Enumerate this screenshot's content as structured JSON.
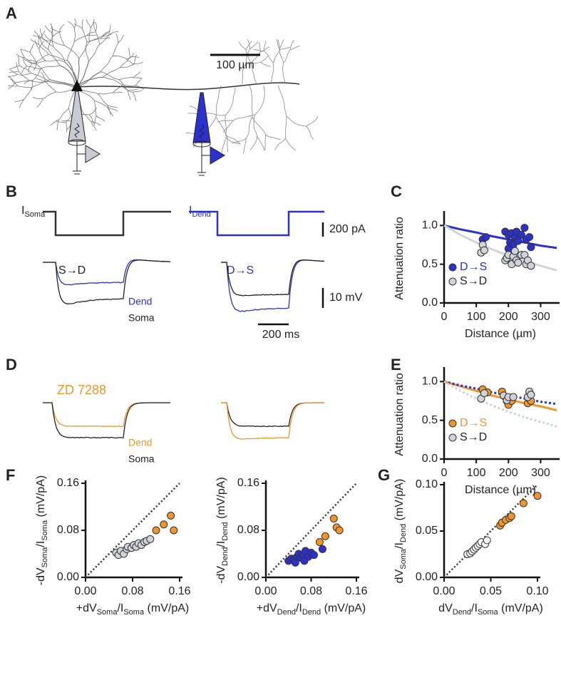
{
  "panel_labels": [
    "A",
    "B",
    "C",
    "D",
    "E",
    "F",
    "G"
  ],
  "panel_a": {
    "scale_bar": "100 µm"
  },
  "panel_b": {
    "i_soma": [
      {
        "text": "I"
      },
      {
        "sub": "Soma"
      }
    ],
    "i_dend": [
      {
        "text": "I"
      },
      {
        "sub": "Dend"
      }
    ],
    "current_scale": "200 pA",
    "left_title": "S→D",
    "right_title": "D→S",
    "dend_label": "Dend",
    "soma_label": "Soma",
    "voltage_scale": "10 mV",
    "time_scale": "200 ms"
  },
  "panel_d": {
    "drug": "ZD 7288",
    "dend_label": "Dend",
    "soma_label": "Soma"
  },
  "chart_data": [
    {
      "type": "scatter",
      "ylabel": [
        {
          "text": "Attenuation ratio"
        }
      ],
      "xlabel": [
        {
          "text": "Distance (µm)"
        }
      ],
      "xlim": [
        0,
        350
      ],
      "xticks": [
        0,
        100,
        200,
        300
      ],
      "ylim": [
        0,
        1.15
      ],
      "yticks": [
        {
          "value": 0,
          "label": "0.0"
        },
        {
          "value": 0.5,
          "label": "0.5"
        },
        {
          "value": 1,
          "label": "1.0"
        }
      ],
      "legend": "lower-left",
      "series": [
        {
          "name": "D→S",
          "color": "#2b30cf",
          "label_color": "#2b30cf",
          "x": [
            120,
            130,
            190,
            200,
            205,
            210,
            215,
            220,
            225,
            230,
            240,
            250,
            255,
            265,
            270,
            200
          ],
          "values": [
            0.82,
            0.85,
            0.92,
            0.88,
            0.78,
            0.9,
            0.75,
            0.85,
            0.92,
            0.8,
            0.88,
            0.97,
            0.82,
            0.85,
            0.72,
            0.7
          ]
        },
        {
          "name": "S→D",
          "color": "#d0d4da",
          "label_color": "#222222",
          "x": [
            115,
            120,
            125,
            190,
            195,
            200,
            210,
            215,
            225,
            230,
            240,
            250,
            255,
            260,
            270,
            220
          ],
          "values": [
            0.65,
            0.75,
            0.68,
            0.55,
            0.58,
            0.62,
            0.5,
            0.6,
            0.55,
            0.52,
            0.62,
            0.62,
            0.5,
            0.55,
            0.48,
            0.67
          ]
        }
      ],
      "fits": [
        {
          "color": "#2b30cf",
          "dashed": false,
          "x": [
            0,
            50,
            100,
            150,
            200,
            250,
            300,
            350
          ],
          "values": [
            1.0,
            0.95,
            0.91,
            0.86,
            0.82,
            0.78,
            0.74,
            0.71
          ]
        },
        {
          "color": "#cdd4db",
          "dashed": false,
          "x": [
            0,
            50,
            100,
            150,
            200,
            250,
            300,
            350
          ],
          "values": [
            1.0,
            0.88,
            0.78,
            0.69,
            0.61,
            0.54,
            0.48,
            0.42
          ]
        }
      ]
    },
    {
      "type": "scatter",
      "ylabel": [
        {
          "text": "Attenuation ratio"
        }
      ],
      "xlabel": [
        {
          "text": "Distance (µm)"
        }
      ],
      "xlim": [
        0,
        350
      ],
      "xticks": [
        0,
        100,
        200,
        300
      ],
      "ylim": [
        0,
        1.15
      ],
      "yticks": [
        {
          "value": 0,
          "label": "0.0"
        },
        {
          "value": 0.5,
          "label": "0.5"
        },
        {
          "value": 1,
          "label": "1.0"
        }
      ],
      "legend": "lower-left",
      "series": [
        {
          "name": "D→S",
          "color": "#f0952a",
          "label_color": "#f0952a",
          "x": [
            120,
            135,
            180,
            190,
            195,
            200,
            210,
            260,
            265,
            270
          ],
          "values": [
            0.9,
            0.86,
            0.87,
            0.8,
            0.75,
            0.7,
            0.75,
            0.72,
            0.78,
            0.75
          ]
        },
        {
          "name": "S→D",
          "color": "#d0d4da",
          "label_color": "#222222",
          "x": [
            115,
            125,
            185,
            195,
            200,
            215,
            260,
            265,
            270
          ],
          "values": [
            0.78,
            0.85,
            0.82,
            0.76,
            0.8,
            0.8,
            0.8,
            0.87,
            0.83
          ]
        }
      ],
      "fits": [
        {
          "color": "#f0952a",
          "dashed": false,
          "x": [
            0,
            50,
            100,
            150,
            200,
            250,
            300,
            350
          ],
          "values": [
            1.0,
            0.94,
            0.88,
            0.82,
            0.77,
            0.72,
            0.68,
            0.63
          ]
        },
        {
          "color": "#2b30cf",
          "dashed": true,
          "x": [
            0,
            50,
            100,
            150,
            200,
            250,
            300,
            350
          ],
          "values": [
            1.0,
            0.95,
            0.91,
            0.86,
            0.82,
            0.78,
            0.74,
            0.71
          ]
        },
        {
          "color": "#cdd4db",
          "dashed": true,
          "x": [
            0,
            50,
            100,
            150,
            200,
            250,
            300,
            350
          ],
          "values": [
            1.0,
            0.88,
            0.78,
            0.69,
            0.61,
            0.54,
            0.48,
            0.42
          ]
        }
      ]
    },
    {
      "type": "scatter",
      "unity_line": true,
      "ylabel": [
        {
          "text": "-dV"
        },
        {
          "sub": "Soma"
        },
        {
          "text": "/I"
        },
        {
          "sub": "Soma"
        },
        {
          "text": " (mV/pA)"
        }
      ],
      "xlabel": [
        {
          "text": "+dV"
        },
        {
          "sub": "Soma"
        },
        {
          "text": "/I"
        },
        {
          "sub": "Soma"
        },
        {
          "text": " (mV/pA)"
        }
      ],
      "xlim": [
        0,
        0.16
      ],
      "xticks": [
        {
          "value": 0,
          "label": "0.00"
        },
        {
          "value": 0.08,
          "label": "0.08"
        },
        {
          "value": 0.16,
          "label": "0.16"
        }
      ],
      "ylim": [
        0,
        0.16
      ],
      "yticks": [
        {
          "value": 0,
          "label": "0.00"
        },
        {
          "value": 0.08,
          "label": "0.08"
        },
        {
          "value": 0.16,
          "label": "0.16"
        }
      ],
      "series": [
        {
          "color": "#d0d4da",
          "x": [
            0.052,
            0.056,
            0.06,
            0.065,
            0.07,
            0.072,
            0.078,
            0.082,
            0.086,
            0.09,
            0.095,
            0.1,
            0.104,
            0.11
          ],
          "values": [
            0.042,
            0.038,
            0.045,
            0.04,
            0.048,
            0.052,
            0.05,
            0.055,
            0.052,
            0.058,
            0.055,
            0.06,
            0.062,
            0.065
          ]
        },
        {
          "color": "#f0952a",
          "x": [
            0.12,
            0.133,
            0.145,
            0.15
          ],
          "values": [
            0.08,
            0.09,
            0.105,
            0.08
          ]
        }
      ]
    },
    {
      "type": "scatter",
      "unity_line": true,
      "ylabel": [
        {
          "text": "-dV"
        },
        {
          "sub": "Dend"
        },
        {
          "text": "/I"
        },
        {
          "sub": "Dend"
        },
        {
          "text": " (mV/pA)"
        }
      ],
      "xlabel": [
        {
          "text": "+dV"
        },
        {
          "sub": "Dend"
        },
        {
          "text": "/I"
        },
        {
          "sub": "Dend"
        },
        {
          "text": " (mV/pA)"
        }
      ],
      "xlim": [
        0,
        0.16
      ],
      "xticks": [
        {
          "value": 0,
          "label": "0.00"
        },
        {
          "value": 0.08,
          "label": "0.08"
        },
        {
          "value": 0.16,
          "label": "0.16"
        }
      ],
      "ylim": [
        0,
        0.16
      ],
      "yticks": [
        {
          "value": 0,
          "label": "0.00"
        },
        {
          "value": 0.08,
          "label": "0.08"
        },
        {
          "value": 0.16,
          "label": "0.16"
        }
      ],
      "series": [
        {
          "color": "#2b30cf",
          "x": [
            0.04,
            0.045,
            0.05,
            0.055,
            0.058,
            0.062,
            0.066,
            0.07,
            0.075,
            0.08,
            0.085,
            0.1,
            0.068,
            0.052
          ],
          "values": [
            0.028,
            0.032,
            0.03,
            0.035,
            0.04,
            0.033,
            0.038,
            0.045,
            0.035,
            0.042,
            0.038,
            0.048,
            0.028,
            0.025
          ]
        },
        {
          "color": "#f0952a",
          "x": [
            0.095,
            0.105,
            0.12,
            0.125,
            0.13
          ],
          "values": [
            0.06,
            0.07,
            0.1,
            0.085,
            0.08
          ]
        }
      ]
    },
    {
      "type": "scatter",
      "unity_line": true,
      "ylabel": [
        {
          "text": "dV"
        },
        {
          "sub": "Soma"
        },
        {
          "text": "/I"
        },
        {
          "sub": "Dend"
        },
        {
          "text": " (mV/pA)"
        }
      ],
      "xlabel": [
        {
          "text": "dV"
        },
        {
          "sub": "Dend"
        },
        {
          "text": "/I"
        },
        {
          "sub": "Soma"
        },
        {
          "text": " (mV/pA)"
        }
      ],
      "xlim": [
        0,
        0.1
      ],
      "xticks": [
        {
          "value": 0,
          "label": "0.00"
        },
        {
          "value": 0.05,
          "label": "0.05"
        },
        {
          "value": 0.1,
          "label": "0.10"
        }
      ],
      "ylim": [
        0,
        0.1
      ],
      "yticks": [
        {
          "value": 0,
          "label": "0.00"
        },
        {
          "value": 0.05,
          "label": "0.05"
        },
        {
          "value": 0.1,
          "label": "0.10"
        }
      ],
      "series": [
        {
          "color": "#ffffff",
          "x": [
            0.025,
            0.028,
            0.03,
            0.032,
            0.034,
            0.036,
            0.038,
            0.04,
            0.044,
            0.046
          ],
          "values": [
            0.025,
            0.026,
            0.028,
            0.03,
            0.032,
            0.034,
            0.036,
            0.038,
            0.036,
            0.04
          ]
        },
        {
          "color": "#f0952a",
          "x": [
            0.06,
            0.062,
            0.066,
            0.07,
            0.072,
            0.085,
            0.1
          ],
          "values": [
            0.056,
            0.059,
            0.062,
            0.064,
            0.066,
            0.08,
            0.088
          ]
        }
      ]
    }
  ]
}
